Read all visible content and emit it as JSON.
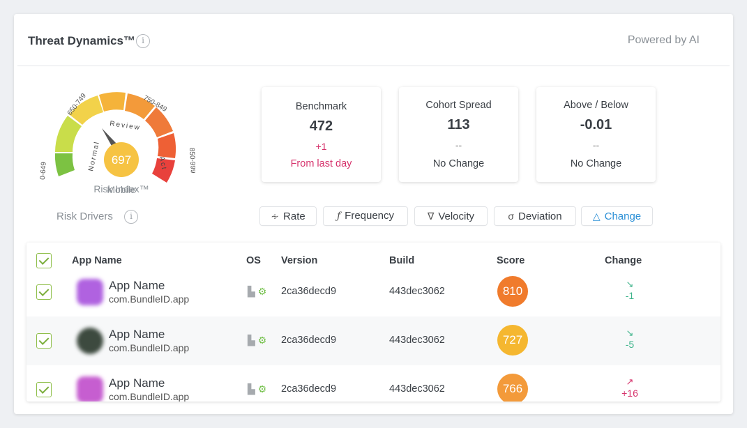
{
  "header": {
    "title": "Threat Dynamics™",
    "info": "i",
    "powered_by": "Powered by AI"
  },
  "gauge": {
    "value": "697",
    "label_line1": "Mobile",
    "label_line2": "Risk Index™",
    "ranges": [
      "0-649",
      "650-749",
      "750-849",
      "850-999"
    ],
    "zones": [
      "Normal",
      "Review",
      "Act"
    ],
    "colors": {
      "green": "#7cc242",
      "yellow_green": "#c9dd4a",
      "yellow": "#f2d24a",
      "orange_light": "#f5a623",
      "orange": "#f08a3a",
      "orange_red": "#ef6a3a",
      "red": "#e8413c",
      "center": "#f6c343"
    }
  },
  "risk_drivers": {
    "label": "Risk Drivers",
    "info": "i"
  },
  "metrics": [
    {
      "title": "Benchmark",
      "value": "472",
      "delta": "+1",
      "note": "From last day"
    },
    {
      "title": "Cohort Spread",
      "value": "113",
      "delta": "--",
      "note": "No Change"
    },
    {
      "title": "Above / Below",
      "value": "-0.01",
      "delta": "--",
      "note": "No Change"
    }
  ],
  "tabs": [
    {
      "icon": "∻",
      "label": "Rate"
    },
    {
      "icon": "ƒ",
      "label": "Frequency"
    },
    {
      "icon": "∇",
      "label": "Velocity"
    },
    {
      "icon": "σ",
      "label": "Deviation"
    },
    {
      "icon": "△",
      "label": "Change"
    }
  ],
  "table": {
    "columns": [
      "App Name",
      "OS",
      "Version",
      "Build",
      "Score",
      "Change"
    ],
    "rows": [
      {
        "name": "App Name",
        "bundle": "com.BundleID.app",
        "version": "2ca36decd9",
        "build": "443dec3062",
        "score": "810",
        "change": "-1",
        "direction": "down",
        "icon_color": "#b062e0",
        "score_color": "#f07b2c"
      },
      {
        "name": "App Name",
        "bundle": "com.BundleID.app",
        "version": "2ca36decd9",
        "build": "443dec3062",
        "score": "727",
        "change": "-5",
        "direction": "down",
        "icon_color": "#3d4a3f",
        "score_color": "#f5b730"
      },
      {
        "name": "App Name",
        "bundle": "com.BundleID.app",
        "version": "2ca36decd9",
        "build": "443dec3062",
        "score": "766",
        "change": "+16",
        "direction": "up",
        "icon_color": "#c65ed0",
        "score_color": "#f39a3a"
      }
    ]
  }
}
